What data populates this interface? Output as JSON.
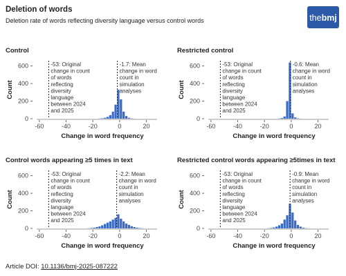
{
  "title": "Deletion of words",
  "subtitle": "Deletion rate of words reflecting diversity language versus control words",
  "logo": [
    "the",
    "bmj"
  ],
  "footer": {
    "label": "Article DOI:",
    "doi": "10.1136/bmj-2025-087222"
  },
  "chart_data": [
    {
      "type": "histogram",
      "title": "Control",
      "xlabel": "Change in word frequency",
      "ylabel": "Count",
      "color": "#3a6bc5",
      "bins": [
        -16,
        -14,
        -12,
        -10,
        -8,
        -6,
        -4,
        -2,
        0,
        2,
        4,
        6,
        8,
        10,
        12
      ],
      "values": [
        2,
        5,
        10,
        20,
        40,
        80,
        160,
        330,
        220,
        80,
        30,
        10,
        3,
        1
      ],
      "xlim": [
        -62,
        28
      ],
      "ylim": [
        0,
        660
      ],
      "xticks": [
        -60,
        -40,
        -20,
        0,
        20
      ],
      "yticks": [
        0,
        200,
        400,
        600
      ],
      "annotations": [
        {
          "x": -53,
          "lines": [
            "-53: Original",
            "change in count",
            "of words",
            "reflecting",
            "diversity",
            "language",
            "between 2024",
            "and 2025"
          ]
        },
        {
          "x": -1.7,
          "lines": [
            "-1.7: Mean",
            "change in word",
            "count in",
            "simulation",
            "analyses"
          ]
        }
      ]
    },
    {
      "type": "histogram",
      "title": "Restricted control",
      "xlabel": "Change in word frequency",
      "ylabel": "Count",
      "color": "#3a6bc5",
      "bins": [
        -10,
        -8,
        -6,
        -4,
        -2,
        0,
        2,
        4,
        6,
        8
      ],
      "values": [
        2,
        8,
        25,
        200,
        640,
        60,
        15,
        4,
        1
      ],
      "xlim": [
        -62,
        28
      ],
      "ylim": [
        0,
        660
      ],
      "xticks": [
        -60,
        -40,
        -20,
        0,
        20
      ],
      "yticks": [
        0,
        200,
        400,
        600
      ],
      "annotations": [
        {
          "x": -53,
          "lines": [
            "-53: Original",
            "change in count",
            "of words",
            "reflecting",
            "diversity",
            "language",
            "between 2024",
            "and 2025"
          ]
        },
        {
          "x": -0.6,
          "lines": [
            "-0.6: Mean",
            "change in word",
            "count in",
            "simulation",
            "analyses"
          ]
        }
      ]
    },
    {
      "type": "histogram",
      "title": "Control words appearing ≥5 times in text",
      "xlabel": "Change in word frequency",
      "ylabel": "Count",
      "color": "#3a6bc5",
      "bins": [
        -24,
        -22,
        -20,
        -18,
        -16,
        -14,
        -12,
        -10,
        -8,
        -6,
        -4,
        -2,
        0,
        2,
        4,
        6,
        8,
        10,
        12,
        14,
        16,
        18
      ],
      "values": [
        2,
        5,
        8,
        15,
        22,
        35,
        50,
        65,
        80,
        100,
        120,
        160,
        110,
        80,
        55,
        40,
        25,
        15,
        8,
        4,
        2
      ],
      "xlim": [
        -62,
        28
      ],
      "ylim": [
        0,
        660
      ],
      "xticks": [
        -60,
        -40,
        -20,
        0,
        20
      ],
      "yticks": [
        0,
        200,
        400,
        600
      ],
      "annotations": [
        {
          "x": -53,
          "lines": [
            "-53: Original",
            "change in count",
            "of words",
            "reflecting",
            "diversity",
            "language",
            "between 2024",
            "and 2025"
          ]
        },
        {
          "x": -2.2,
          "lines": [
            "-2.2: Mean",
            "change in word",
            "count in",
            "simulation",
            "analyses"
          ]
        }
      ]
    },
    {
      "type": "histogram",
      "title": "Restricted control words appearing ≥5times in text",
      "xlabel": "Change in word frequency",
      "ylabel": "Count",
      "color": "#3a6bc5",
      "bins": [
        -18,
        -16,
        -14,
        -12,
        -10,
        -8,
        -6,
        -4,
        -2,
        0,
        2,
        4,
        6,
        8,
        10,
        12,
        14
      ],
      "values": [
        2,
        5,
        10,
        20,
        35,
        55,
        100,
        150,
        280,
        180,
        90,
        40,
        20,
        8,
        3,
        1
      ],
      "xlim": [
        -62,
        28
      ],
      "ylim": [
        0,
        660
      ],
      "xticks": [
        -60,
        -40,
        -20,
        0,
        20
      ],
      "yticks": [
        0,
        200,
        400,
        600
      ],
      "annotations": [
        {
          "x": -53,
          "lines": [
            "-53: Original",
            "change in count",
            "of words",
            "reflecting",
            "diversity",
            "language",
            "between 2024",
            "and 2025"
          ]
        },
        {
          "x": -0.9,
          "lines": [
            "-0.9: Mean",
            "change in word",
            "count in",
            "simulation",
            "analyses"
          ]
        }
      ]
    }
  ]
}
